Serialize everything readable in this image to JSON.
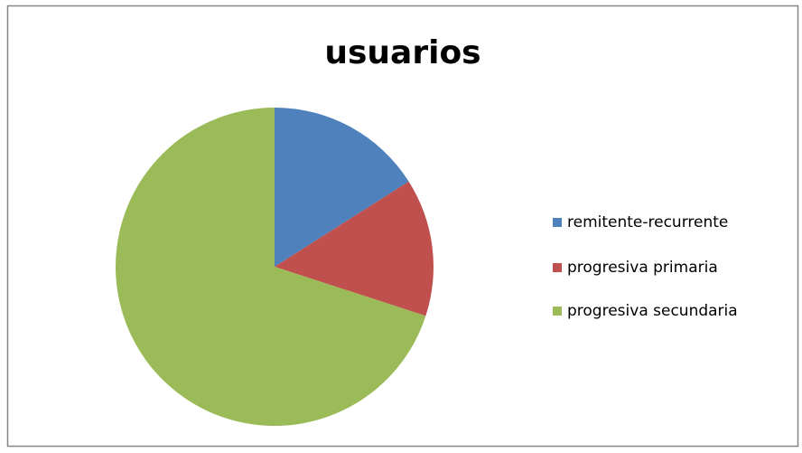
{
  "chart_data": {
    "type": "pie",
    "title": "usuarios",
    "categories": [
      "remitente-recurrente",
      "progresiva primaria",
      "progresiva secundaria"
    ],
    "values": [
      16,
      14,
      70
    ],
    "colors": [
      "#4f81bd",
      "#c0504d",
      "#9bbb59"
    ],
    "legend": "right"
  }
}
